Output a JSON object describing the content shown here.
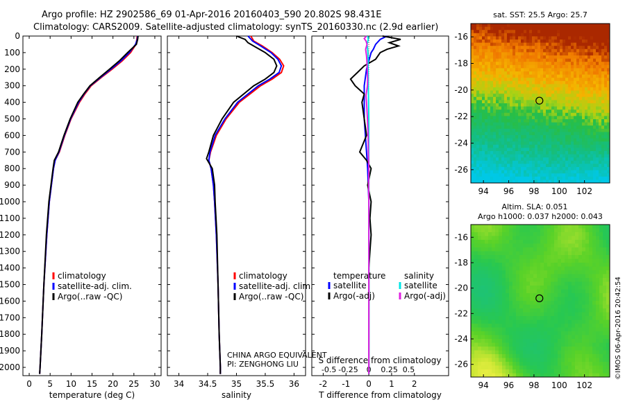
{
  "header": {
    "line1": "Argo profile: HZ 2902586_69 01-Apr-2016 20160403_590 20.802S 98.431E",
    "line2": "Climatology: CARS2009. Satellite-adjusted climatology: synTS_20160330.nc (2.9d earlier)"
  },
  "colors": {
    "climatology": "#ff0000",
    "satellite": "#0000ff",
    "argo": "#000000",
    "salinity_satellite": "#00e5e5",
    "salinity_argo": "#e020e0"
  },
  "credits": {
    "line1": "CHINA ARGO EQUIVALENT",
    "line2": "PI: ZENGHONG LIU",
    "imos": "©IMOS 06-Apr-2016 20:42:54"
  },
  "chart_data": [
    {
      "type": "line",
      "id": "temperature-profile",
      "xlabel": "temperature (deg C)",
      "ylabel": "",
      "xlim": [
        -1.5,
        31.5
      ],
      "ylim": [
        2050,
        0
      ],
      "xticks": [
        0,
        5,
        10,
        15,
        20,
        25,
        30
      ],
      "yticks": [
        0,
        100,
        200,
        300,
        400,
        500,
        600,
        700,
        800,
        900,
        1000,
        1100,
        1200,
        1300,
        1400,
        1500,
        1600,
        1700,
        1800,
        1900,
        2000
      ],
      "legend": [
        "climatology",
        "satellite-adj. clim.",
        "Argo(..raw -QC)"
      ],
      "series": [
        {
          "name": "climatology",
          "color": "#ff0000",
          "depth": [
            0,
            20,
            50,
            100,
            150,
            200,
            250,
            300,
            350,
            400,
            500,
            600,
            700,
            750,
            800,
            1000,
            1200,
            1500,
            1800,
            2000,
            2040
          ],
          "values": [
            25.8,
            25.7,
            25.5,
            24.2,
            22.2,
            19.8,
            17.2,
            14.8,
            13.3,
            12.0,
            10.0,
            8.5,
            7.2,
            6.2,
            5.8,
            4.8,
            4.2,
            3.5,
            3.0,
            2.6,
            2.5
          ]
        },
        {
          "name": "satellite-adj. clim.",
          "color": "#0000ff",
          "depth": [
            0,
            20,
            50,
            100,
            150,
            200,
            250,
            300,
            350,
            400,
            500,
            600,
            700,
            750,
            800,
            1000,
            1200,
            1500,
            1800,
            2000,
            2040
          ],
          "values": [
            25.9,
            25.8,
            25.4,
            23.9,
            21.9,
            19.5,
            17.0,
            14.6,
            13.1,
            11.8,
            9.9,
            8.4,
            7.1,
            6.2,
            5.8,
            4.8,
            4.2,
            3.5,
            3.0,
            2.6,
            2.5
          ]
        },
        {
          "name": "Argo(..raw -QC)",
          "color": "#000000",
          "depth": [
            0,
            20,
            50,
            100,
            150,
            200,
            250,
            300,
            350,
            400,
            500,
            600,
            700,
            750,
            800,
            1000,
            1200,
            1500,
            1800,
            2000,
            2040
          ],
          "values": [
            26.0,
            25.9,
            25.6,
            23.5,
            21.5,
            19.2,
            16.8,
            14.5,
            13.0,
            11.6,
            9.8,
            8.3,
            7.0,
            6.0,
            5.7,
            4.7,
            4.1,
            3.5,
            3.0,
            2.6,
            2.5
          ]
        }
      ]
    },
    {
      "type": "line",
      "id": "salinity-profile",
      "xlabel": "salinity",
      "ylabel": "",
      "xlim": [
        33.8,
        36.2
      ],
      "ylim": [
        2050,
        0
      ],
      "xticks": [
        34,
        34.5,
        35,
        35.5,
        36
      ],
      "legend": [
        "climatology",
        "satellite-adj. clim.",
        "Argo(..raw -QC)"
      ],
      "series": [
        {
          "name": "climatology",
          "color": "#ff0000",
          "depth": [
            0,
            30,
            60,
            100,
            140,
            180,
            220,
            260,
            300,
            400,
            500,
            600,
            700,
            750,
            800,
            900,
            1000,
            1200,
            1500,
            1800,
            2000,
            2040
          ],
          "values": [
            35.25,
            35.3,
            35.45,
            35.62,
            35.75,
            35.82,
            35.78,
            35.62,
            35.42,
            35.05,
            34.82,
            34.65,
            34.55,
            34.52,
            34.56,
            34.6,
            34.62,
            34.65,
            34.68,
            34.7,
            34.72,
            34.72
          ]
        },
        {
          "name": "satellite-adj. clim.",
          "color": "#0000ff",
          "depth": [
            0,
            30,
            60,
            100,
            140,
            180,
            220,
            260,
            300,
            400,
            500,
            600,
            700,
            750,
            800,
            900,
            1000,
            1200,
            1500,
            1800,
            2000,
            2040
          ],
          "values": [
            35.2,
            35.28,
            35.42,
            35.6,
            35.72,
            35.78,
            35.74,
            35.58,
            35.38,
            35.02,
            34.8,
            34.63,
            34.54,
            34.52,
            34.56,
            34.6,
            34.62,
            34.65,
            34.68,
            34.7,
            34.72,
            34.72
          ]
        },
        {
          "name": "Argo(..raw -QC)",
          "color": "#000000",
          "depth": [
            0,
            20,
            40,
            70,
            100,
            140,
            180,
            220,
            260,
            300,
            400,
            500,
            600,
            700,
            740,
            800,
            900,
            1000,
            1200,
            1500,
            1800,
            2000,
            2040
          ],
          "values": [
            35.0,
            35.15,
            35.2,
            35.35,
            35.5,
            35.65,
            35.7,
            35.65,
            35.5,
            35.3,
            34.95,
            34.75,
            34.6,
            34.52,
            34.48,
            34.58,
            34.62,
            34.63,
            34.66,
            34.68,
            34.7,
            34.72,
            34.72
          ]
        }
      ]
    },
    {
      "type": "line",
      "id": "difference-profile",
      "xlabel": "T difference from climatology",
      "xlabel_top": "S difference from climatology",
      "xlim": [
        -2.5,
        3.5
      ],
      "ylim": [
        2050,
        0
      ],
      "xticks_bottom": [
        -2,
        -1,
        0,
        1,
        2
      ],
      "xticks_top": [
        -0.5,
        -0.25,
        0,
        0.25,
        0.5
      ],
      "legend_left_title": "temperature",
      "legend_right_title": "salinity",
      "legend": [
        "satellite",
        "Argo(-adj)",
        "satellite",
        "Argo(-adj)"
      ],
      "series": [
        {
          "name": "T satellite",
          "color": "#0000ff",
          "depth": [
            0,
            20,
            50,
            80,
            100,
            150,
            200,
            300,
            400,
            500,
            700,
            800,
            1000,
            1500,
            2000,
            2040
          ],
          "values": [
            0.8,
            0.5,
            0.3,
            0.2,
            0.1,
            0.0,
            -0.1,
            -0.2,
            -0.2,
            -0.2,
            -0.1,
            -0.05,
            0.0,
            0.0,
            0.0,
            0.0
          ]
        },
        {
          "name": "T Argo(-adj)",
          "color": "#000000",
          "depth": [
            0,
            20,
            40,
            60,
            80,
            100,
            140,
            180,
            220,
            260,
            300,
            350,
            400,
            500,
            600,
            700,
            750,
            800,
            900,
            1000,
            1100,
            1200,
            1300,
            1400,
            1600,
            1800,
            2000,
            2040
          ],
          "values": [
            0.6,
            1.4,
            0.9,
            1.3,
            0.8,
            0.5,
            0.3,
            -0.2,
            -0.5,
            -0.8,
            -0.6,
            -0.2,
            -0.3,
            -0.2,
            -0.1,
            -0.4,
            -0.1,
            0.1,
            -0.05,
            0.1,
            0.05,
            0.1,
            0.05,
            0.0,
            0.0,
            0.0,
            0.0,
            0.0
          ]
        },
        {
          "name": "S satellite",
          "color": "#00e5e5",
          "depth": [
            0,
            20,
            50,
            80,
            100,
            150,
            200,
            300,
            400,
            500,
            700,
            800,
            1000,
            1500,
            2000,
            2040
          ],
          "values": [
            -0.05,
            -0.02,
            -0.08,
            -0.05,
            -0.04,
            -0.03,
            -0.03,
            -0.02,
            -0.01,
            0.0,
            0.0,
            0.0,
            0.0,
            0.0,
            0.0,
            0.0
          ]
        },
        {
          "name": "S Argo(-adj)",
          "color": "#e020e0",
          "depth": [
            0,
            15,
            30,
            50,
            80,
            120,
            160,
            200,
            260,
            300,
            360,
            400,
            500,
            600,
            700,
            750,
            800,
            900,
            1000,
            1200,
            1500,
            1800,
            2000,
            2040
          ],
          "values": [
            -0.1,
            -0.2,
            -0.12,
            -0.08,
            -0.14,
            -0.1,
            -0.08,
            -0.07,
            -0.05,
            -0.06,
            -0.12,
            -0.1,
            -0.06,
            -0.03,
            -0.02,
            -0.01,
            0.0,
            -0.01,
            0.0,
            0.0,
            0.0,
            0.0,
            0.0,
            0.0
          ]
        }
      ]
    },
    {
      "type": "heatmap",
      "id": "sst-map",
      "title": "sat. SST: 25.5  Argo: 25.7",
      "xlim": [
        93,
        104
      ],
      "ylim": [
        -27,
        -15
      ],
      "xticks": [
        94,
        96,
        98,
        100,
        102
      ],
      "yticks": [
        -16,
        -18,
        -20,
        -22,
        -24,
        -26
      ],
      "marker": {
        "lon": 98.431,
        "lat": -20.802
      }
    },
    {
      "type": "heatmap",
      "id": "sla-map",
      "title": "Altim. SLA: 0.051",
      "subtitle": "Argo h1000: 0.037  h2000: 0.043",
      "xlim": [
        93,
        104
      ],
      "ylim": [
        -27,
        -15
      ],
      "xticks": [
        94,
        96,
        98,
        100,
        102
      ],
      "yticks": [
        -16,
        -18,
        -20,
        -22,
        -24,
        -26
      ],
      "marker": {
        "lon": 98.431,
        "lat": -20.802
      }
    }
  ]
}
